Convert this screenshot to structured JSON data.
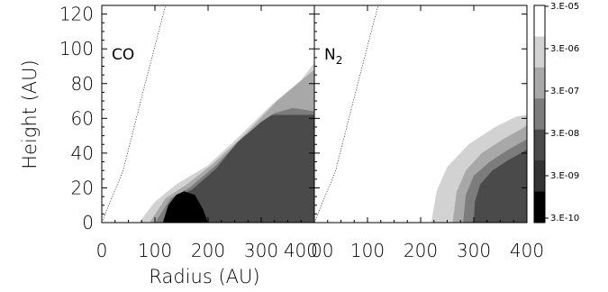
{
  "chart_data": {
    "type": "heatmap",
    "xlabel": "Radius (AU)",
    "ylabel": "Height (AU)",
    "xlim": [
      0,
      400
    ],
    "ylim": [
      0,
      125
    ],
    "x_ticks": [
      "0",
      "100",
      "200",
      "300",
      "400"
    ],
    "x_ticks_right": [
      "00",
      "100",
      "200",
      "300",
      "400"
    ],
    "y_ticks": [
      "0",
      "20",
      "40",
      "60",
      "80",
      "100",
      "120"
    ],
    "colorbar": {
      "labels": [
        "3.E-05",
        "3.E-06",
        "3.E-07",
        "3.E-08",
        "3.E-09",
        "3.E-10"
      ],
      "colors": [
        "#ffffff",
        "#d2d2d2",
        "#a8a8a8",
        "#7c7c7c",
        "#4a4a4a",
        "#323232",
        "#000000"
      ]
    },
    "panels": [
      {
        "name": "CO",
        "label_main": "CO",
        "label_sub": "",
        "dotted_line": [
          [
            0,
            0
          ],
          [
            40,
            30
          ],
          [
            80,
            78
          ],
          [
            120,
            125
          ]
        ],
        "levels": [
          {
            "color": "#d2d2d2",
            "polygon": [
              [
                70,
                0
              ],
              [
                100,
                12
              ],
              [
                140,
                22
              ],
              [
                200,
                33
              ],
              [
                260,
                50
              ],
              [
                320,
                68
              ],
              [
                375,
                82
              ],
              [
                400,
                92
              ],
              [
                400,
                0
              ]
            ]
          },
          {
            "color": "#a8a8a8",
            "polygon": [
              [
                90,
                0
              ],
              [
                120,
                14
              ],
              [
                160,
                22
              ],
              [
                210,
                34
              ],
              [
                270,
                51
              ],
              [
                330,
                70
              ],
              [
                380,
                83
              ],
              [
                400,
                88
              ],
              [
                400,
                0
              ]
            ]
          },
          {
            "color": "#7c7c7c",
            "polygon": [
              [
                100,
                0
              ],
              [
                130,
                14
              ],
              [
                165,
                20
              ],
              [
                215,
                33
              ],
              [
                265,
                49
              ],
              [
                325,
                63
              ],
              [
                360,
                66
              ],
              [
                400,
                64
              ],
              [
                400,
                0
              ]
            ]
          },
          {
            "color": "#4a4a4a",
            "polygon": [
              [
                115,
                0
              ],
              [
                135,
                14
              ],
              [
                170,
                19
              ],
              [
                215,
                31
              ],
              [
                255,
                46
              ],
              [
                300,
                58
              ],
              [
                320,
                62
              ],
              [
                400,
                62
              ],
              [
                400,
                0
              ]
            ]
          },
          {
            "color": "#000000",
            "polygon": [
              [
                115,
                0
              ],
              [
                125,
                10
              ],
              [
                140,
                16
              ],
              [
                155,
                18
              ],
              [
                175,
                16
              ],
              [
                190,
                8
              ],
              [
                200,
                0
              ]
            ]
          }
        ]
      },
      {
        "name": "N2",
        "label_main": "N",
        "label_sub": "2",
        "dotted_line": [
          [
            0,
            0
          ],
          [
            40,
            30
          ],
          [
            80,
            78
          ],
          [
            120,
            125
          ]
        ],
        "levels": [
          {
            "color": "#d2d2d2",
            "polygon": [
              [
                220,
                0
              ],
              [
                230,
                18
              ],
              [
                250,
                32
              ],
              [
                290,
                45
              ],
              [
                340,
                55
              ],
              [
                380,
                61
              ],
              [
                400,
                62
              ],
              [
                400,
                0
              ]
            ]
          },
          {
            "color": "#a8a8a8",
            "polygon": [
              [
                260,
                0
              ],
              [
                268,
                18
              ],
              [
                285,
                30
              ],
              [
                315,
                40
              ],
              [
                355,
                48
              ],
              [
                390,
                54
              ],
              [
                400,
                56
              ],
              [
                400,
                0
              ]
            ]
          },
          {
            "color": "#7c7c7c",
            "polygon": [
              [
                280,
                0
              ],
              [
                285,
                16
              ],
              [
                300,
                27
              ],
              [
                330,
                35
              ],
              [
                365,
                42
              ],
              [
                400,
                48
              ],
              [
                400,
                0
              ]
            ]
          },
          {
            "color": "#4a4a4a",
            "polygon": [
              [
                300,
                0
              ],
              [
                302,
                12
              ],
              [
                312,
                22
              ],
              [
                335,
                30
              ],
              [
                365,
                36
              ],
              [
                400,
                42
              ],
              [
                400,
                0
              ]
            ]
          }
        ]
      }
    ]
  }
}
